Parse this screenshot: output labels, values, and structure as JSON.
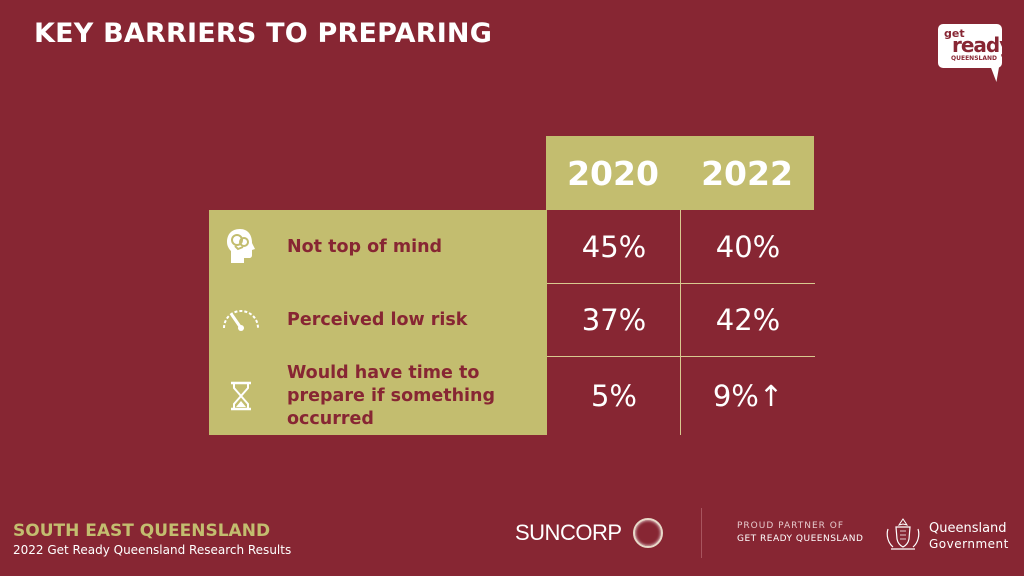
{
  "header": {
    "title": "KEY BARRIERS TO PREPARING"
  },
  "logo": {
    "line1": "get",
    "line2": "ready",
    "line3": "QUEENSLAND"
  },
  "table": {
    "years": [
      "2020",
      "2022"
    ],
    "rows": [
      {
        "icon": "brain-head-icon",
        "label": "Not top of mind",
        "v2020": "45%",
        "v2022": "40%"
      },
      {
        "icon": "gauge-icon",
        "label": "Perceived low risk",
        "v2020": "37%",
        "v2022": "42%"
      },
      {
        "icon": "hourglass-icon",
        "label": "Would have time to prepare if something occurred",
        "v2020": "5%",
        "v2022": "9%↑"
      }
    ]
  },
  "footer": {
    "region": "SOUTH EAST QUEENSLAND",
    "subtitle": "2022 Get Ready Queensland Research Results",
    "sponsor": "SUNCORP",
    "partner_line1": "PROUD PARTNER OF",
    "partner_line2": "GET READY QUEENSLAND",
    "gov_line1": "Queensland",
    "gov_line2": "Government"
  },
  "colors": {
    "background": "#872633",
    "accent": "#c3bd6f",
    "text": "#ffffff"
  }
}
